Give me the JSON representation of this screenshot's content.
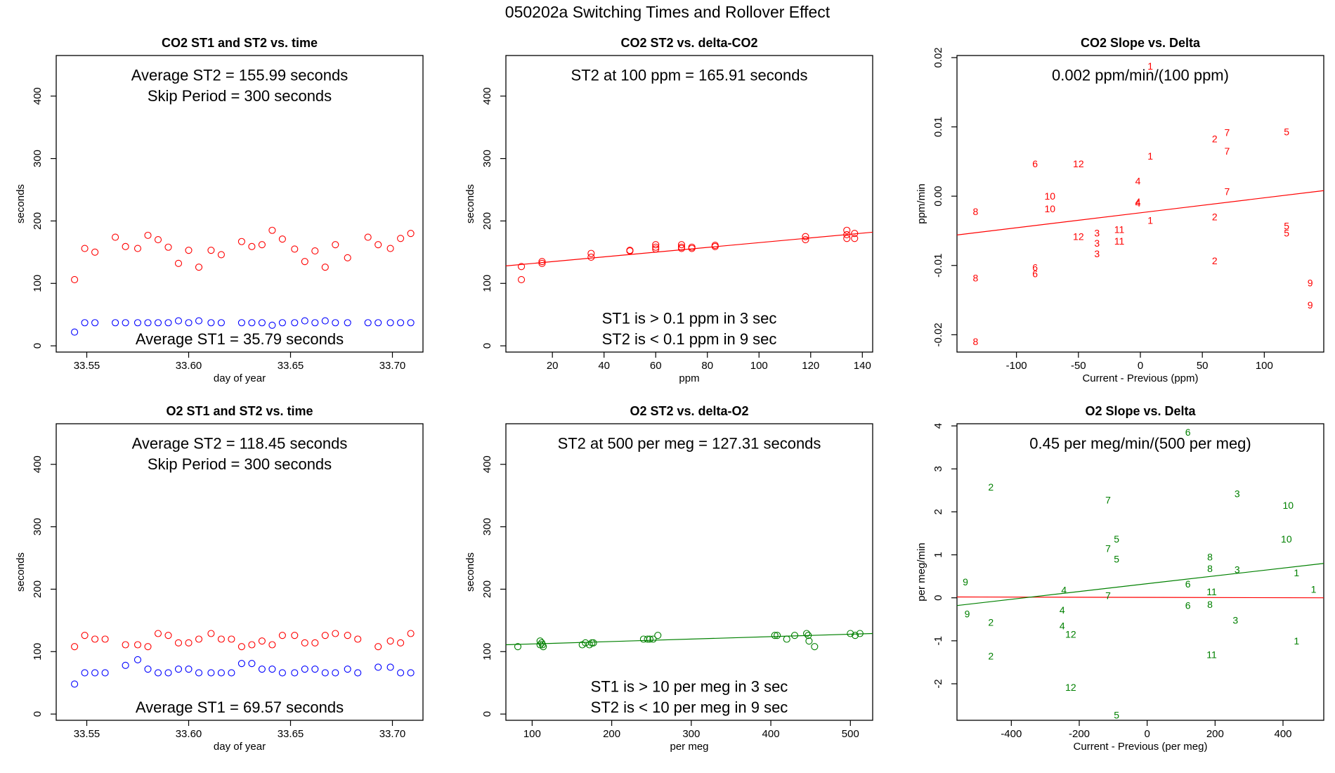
{
  "figure_title": "050202a   Switching Times and Rollover Effect",
  "colors": {
    "co2": "#ff0000",
    "blue": "#0000ff",
    "o2": "#008000",
    "axis": "#000000"
  },
  "chart_data": [
    {
      "type": "scatter",
      "title": "CO2 ST1 and ST2 vs. time",
      "xlabel": "day of year",
      "ylabel": "seconds",
      "xlim": [
        33.535,
        33.715
      ],
      "ylim": [
        -10,
        465
      ],
      "xticks": [
        33.55,
        33.6,
        33.65,
        33.7
      ],
      "xtick_labels": [
        "33.55",
        "33.60",
        "33.65",
        "33.70"
      ],
      "yticks": [
        0,
        100,
        200,
        300,
        400
      ],
      "ytick_labels": [
        "0",
        "100",
        "200",
        "300",
        "400"
      ],
      "annotations": [
        {
          "text": "Average ST2 =  155.99  seconds",
          "x": 0.5,
          "y": 0.93
        },
        {
          "text": "Skip Period =  300  seconds",
          "x": 0.5,
          "y": 0.86
        },
        {
          "text": "Average ST1 =  35.79  seconds",
          "x": 0.5,
          "y": 0.04
        }
      ],
      "series": [
        {
          "color": "#ff0000",
          "marker": "circle",
          "x": [
            33.544,
            33.549,
            33.554,
            33.564,
            33.569,
            33.575,
            33.58,
            33.585,
            33.59,
            33.595,
            33.6,
            33.605,
            33.611,
            33.616,
            33.626,
            33.631,
            33.636,
            33.641,
            33.646,
            33.652,
            33.657,
            33.662,
            33.667,
            33.672,
            33.678,
            33.688,
            33.693,
            33.699,
            33.704,
            33.709
          ],
          "y": [
            106,
            156,
            150,
            174,
            159,
            156,
            177,
            170,
            158,
            132,
            153,
            126,
            153,
            146,
            167,
            159,
            162,
            185,
            171,
            155,
            135,
            152,
            126,
            162,
            141,
            174,
            162,
            156,
            172,
            180
          ]
        },
        {
          "color": "#0000ff",
          "marker": "circle",
          "x": [
            33.544,
            33.549,
            33.554,
            33.564,
            33.569,
            33.575,
            33.58,
            33.585,
            33.59,
            33.595,
            33.6,
            33.605,
            33.611,
            33.616,
            33.626,
            33.631,
            33.636,
            33.641,
            33.646,
            33.652,
            33.657,
            33.662,
            33.667,
            33.672,
            33.678,
            33.688,
            33.693,
            33.699,
            33.704,
            33.709
          ],
          "y": [
            22,
            37,
            37,
            37,
            37,
            37,
            37,
            37,
            37,
            40,
            37,
            40,
            37,
            37,
            37,
            37,
            37,
            33,
            37,
            37,
            40,
            37,
            40,
            37,
            37,
            37,
            37,
            37,
            37,
            37
          ]
        }
      ]
    },
    {
      "type": "scatter",
      "title": "CO2 ST2 vs. delta-CO2",
      "xlabel": "ppm",
      "ylabel": "seconds",
      "xlim": [
        2,
        144
      ],
      "ylim": [
        -10,
        465
      ],
      "xticks": [
        20,
        40,
        60,
        80,
        100,
        120,
        140
      ],
      "xtick_labels": [
        "20",
        "40",
        "60",
        "80",
        "100",
        "120",
        "140"
      ],
      "yticks": [
        0,
        100,
        200,
        300,
        400
      ],
      "ytick_labels": [
        "0",
        "100",
        "200",
        "300",
        "400"
      ],
      "annotations": [
        {
          "text": "ST2 at 100 ppm =  165.91  seconds",
          "x": 0.5,
          "y": 0.93
        },
        {
          "text": "ST1 is > 0.1 ppm in 3 sec",
          "x": 0.5,
          "y": 0.11
        },
        {
          "text": "ST2 is < 0.1 ppm in 9 sec",
          "x": 0.5,
          "y": 0.04
        }
      ],
      "fit_line": {
        "color": "#ff0000",
        "x": [
          2,
          144
        ],
        "y": [
          128,
          182
        ]
      },
      "series": [
        {
          "color": "#ff0000",
          "marker": "circle",
          "x": [
            8,
            8,
            16,
            16,
            35,
            35,
            50,
            50,
            60,
            60,
            60,
            70,
            70,
            70,
            74,
            74,
            83,
            83,
            118,
            118,
            134,
            134,
            134,
            137,
            137
          ],
          "y": [
            127,
            106,
            132,
            135,
            142,
            148,
            152,
            153,
            155,
            158,
            162,
            156,
            158,
            162,
            156,
            158,
            159,
            161,
            170,
            175,
            172,
            178,
            185,
            172,
            180
          ]
        }
      ]
    },
    {
      "type": "scatter",
      "title": "CO2 Slope vs. Delta",
      "xlabel": "Current - Previous (ppm)",
      "ylabel": "ppm/min",
      "xlim": [
        -148,
        148
      ],
      "ylim": [
        -0.0225,
        0.0203
      ],
      "xticks": [
        -100,
        -50,
        0,
        50,
        100
      ],
      "xtick_labels": [
        "-100",
        "-50",
        "0",
        "50",
        "100"
      ],
      "yticks": [
        -0.02,
        -0.01,
        0.0,
        0.01,
        0.02
      ],
      "ytick_labels": [
        "-0.02",
        "-0.01",
        "0.00",
        "0.01",
        "0.02"
      ],
      "annotations": [
        {
          "text": "0.002  ppm/min/(100 ppm)",
          "x": 0.5,
          "y": 0.93
        }
      ],
      "fit_line": {
        "color": "#ff0000",
        "x": [
          -148,
          148
        ],
        "y": [
          -0.0056,
          0.0008
        ]
      },
      "series": [
        {
          "color": "#ff0000",
          "marker": "label",
          "labels": [
            "1",
            "1",
            "1",
            "2",
            "2",
            "2",
            "3",
            "3",
            "3",
            "4",
            "4",
            "4",
            "5",
            "5",
            "5",
            "6",
            "6",
            "6",
            "7",
            "7",
            "7",
            "8",
            "8",
            "8",
            "9",
            "9",
            "10",
            "10",
            "11",
            "11",
            "12",
            "12"
          ],
          "x": [
            8,
            8,
            8,
            60,
            60,
            60,
            -35,
            -35,
            -35,
            -2,
            -2,
            -2,
            118,
            118,
            118,
            -85,
            -85,
            -85,
            70,
            70,
            70,
            -133,
            -133,
            -133,
            137,
            137,
            -73,
            -73,
            -17,
            -17,
            -50,
            -50
          ],
          "y": [
            0.0188,
            0.0058,
            -0.0035,
            0.0083,
            -0.003,
            -0.0093,
            -0.0053,
            -0.0068,
            -0.0083,
            0.0022,
            -0.0008,
            -0.001,
            0.0093,
            -0.0043,
            -0.0053,
            0.0047,
            -0.0103,
            -0.0112,
            0.0092,
            0.0065,
            0.0007,
            -0.0022,
            -0.0118,
            -0.021,
            -0.0125,
            -0.0157,
            0.0,
            -0.0018,
            -0.0048,
            -0.0065,
            0.0047,
            -0.0058
          ]
        }
      ]
    },
    {
      "type": "scatter",
      "title": "O2 ST1 and ST2 vs. time",
      "xlabel": "day of year",
      "ylabel": "seconds",
      "xlim": [
        33.535,
        33.715
      ],
      "ylim": [
        -10,
        465
      ],
      "xticks": [
        33.55,
        33.6,
        33.65,
        33.7
      ],
      "xtick_labels": [
        "33.55",
        "33.60",
        "33.65",
        "33.70"
      ],
      "yticks": [
        0,
        100,
        200,
        300,
        400
      ],
      "ytick_labels": [
        "0",
        "100",
        "200",
        "300",
        "400"
      ],
      "annotations": [
        {
          "text": "Average ST2 =  118.45  seconds",
          "x": 0.5,
          "y": 0.93
        },
        {
          "text": "Skip Period =  300  seconds",
          "x": 0.5,
          "y": 0.86
        },
        {
          "text": "Average ST1 =  69.57  seconds",
          "x": 0.5,
          "y": 0.04
        }
      ],
      "series": [
        {
          "color": "#ff0000",
          "marker": "circle",
          "x": [
            33.544,
            33.549,
            33.554,
            33.559,
            33.569,
            33.575,
            33.58,
            33.585,
            33.59,
            33.595,
            33.6,
            33.605,
            33.611,
            33.616,
            33.621,
            33.626,
            33.631,
            33.636,
            33.641,
            33.646,
            33.652,
            33.657,
            33.662,
            33.667,
            33.672,
            33.678,
            33.683,
            33.693,
            33.699,
            33.704,
            33.709
          ],
          "y": [
            108,
            126,
            120,
            120,
            111,
            111,
            108,
            129,
            126,
            114,
            114,
            120,
            129,
            120,
            120,
            108,
            111,
            117,
            111,
            126,
            126,
            114,
            114,
            126,
            129,
            126,
            120,
            108,
            117,
            114,
            129
          ]
        },
        {
          "color": "#0000ff",
          "marker": "circle",
          "x": [
            33.544,
            33.549,
            33.554,
            33.559,
            33.569,
            33.575,
            33.58,
            33.585,
            33.59,
            33.595,
            33.6,
            33.605,
            33.611,
            33.616,
            33.621,
            33.626,
            33.631,
            33.636,
            33.641,
            33.646,
            33.652,
            33.657,
            33.662,
            33.667,
            33.672,
            33.678,
            33.683,
            33.693,
            33.699,
            33.704,
            33.709
          ],
          "y": [
            48,
            66,
            66,
            66,
            78,
            87,
            72,
            66,
            66,
            72,
            72,
            66,
            66,
            66,
            66,
            81,
            81,
            72,
            72,
            66,
            66,
            72,
            72,
            66,
            66,
            72,
            66,
            75,
            75,
            66,
            66
          ]
        }
      ]
    },
    {
      "type": "scatter",
      "title": "O2 ST2 vs. delta-O2",
      "xlabel": "per meg",
      "ylabel": "seconds",
      "xlim": [
        67,
        528
      ],
      "ylim": [
        -10,
        465
      ],
      "xticks": [
        100,
        200,
        300,
        400,
        500
      ],
      "xtick_labels": [
        "100",
        "200",
        "300",
        "400",
        "500"
      ],
      "yticks": [
        0,
        100,
        200,
        300,
        400
      ],
      "ytick_labels": [
        "0",
        "100",
        "200",
        "300",
        "400"
      ],
      "annotations": [
        {
          "text": "ST2 at 500 per meg =  127.31  seconds",
          "x": 0.5,
          "y": 0.93
        },
        {
          "text": "ST1 is > 10 per meg in 3 sec",
          "x": 0.5,
          "y": 0.11
        },
        {
          "text": "ST2 is < 10 per meg in 9 sec",
          "x": 0.5,
          "y": 0.04
        }
      ],
      "fit_line": {
        "color": "#008000",
        "x": [
          67,
          528
        ],
        "y": [
          111,
          129
        ]
      },
      "series": [
        {
          "color": "#008000",
          "marker": "circle",
          "x": [
            82,
            110,
            110,
            112,
            113,
            114,
            163,
            167,
            172,
            175,
            177,
            240,
            245,
            248,
            252,
            258,
            405,
            408,
            420,
            430,
            445,
            447,
            448,
            455,
            500,
            506,
            512
          ],
          "y": [
            108,
            117,
            111,
            114,
            111,
            108,
            111,
            114,
            111,
            114,
            114,
            120,
            120,
            120,
            120,
            126,
            126,
            126,
            120,
            126,
            129,
            126,
            117,
            108,
            129,
            126,
            129
          ]
        }
      ]
    },
    {
      "type": "scatter",
      "title": "O2 Slope vs. Delta",
      "xlabel": "Current - Previous (per meg)",
      "ylabel": "per meg/min",
      "xlim": [
        -560,
        520
      ],
      "ylim": [
        -2.85,
        4.05
      ],
      "xticks": [
        -400,
        -200,
        0,
        200,
        400
      ],
      "xtick_labels": [
        "-400",
        "-200",
        "0",
        "200",
        "400"
      ],
      "yticks": [
        -2,
        -1,
        0,
        1,
        2,
        3,
        4
      ],
      "ytick_labels": [
        "-2",
        "-1",
        "0",
        "1",
        "2",
        "3",
        "4"
      ],
      "annotations": [
        {
          "text": "0.45  per meg/min/(500 per meg)",
          "x": 0.5,
          "y": 0.93
        }
      ],
      "fit_line": {
        "color": "#008000",
        "x": [
          -560,
          520
        ],
        "y": [
          -0.18,
          0.8
        ]
      },
      "zero_line": {
        "color": "#ff0000",
        "x": [
          -560,
          520
        ],
        "y": [
          0.02,
          0.0
        ]
      },
      "series": [
        {
          "color": "#008000",
          "marker": "label",
          "labels": [
            "1",
            "1",
            "1",
            "2",
            "2",
            "2",
            "3",
            "3",
            "3",
            "4",
            "4",
            "4",
            "5",
            "5",
            "5",
            "6",
            "6",
            "6",
            "7",
            "7",
            "7",
            "8",
            "8",
            "8",
            "9",
            "9",
            "10",
            "10",
            "11",
            "11",
            "12",
            "12"
          ],
          "x": [
            440,
            490,
            440,
            -460,
            -460,
            -460,
            265,
            265,
            260,
            -245,
            -250,
            -250,
            -90,
            -90,
            -90,
            120,
            120,
            120,
            -115,
            -115,
            -115,
            185,
            185,
            185,
            -535,
            -530,
            415,
            410,
            190,
            190,
            -225,
            -225
          ],
          "y": [
            0.58,
            0.2,
            -1.0,
            2.58,
            -0.57,
            -1.35,
            2.42,
            0.66,
            -0.52,
            0.18,
            -0.28,
            -0.65,
            1.37,
            0.9,
            -2.73,
            3.85,
            0.32,
            -0.18,
            2.28,
            1.15,
            0.05,
            0.95,
            0.68,
            -0.15,
            0.37,
            -0.37,
            2.15,
            1.37,
            0.14,
            -1.32,
            -0.85,
            -2.08
          ]
        }
      ]
    }
  ]
}
